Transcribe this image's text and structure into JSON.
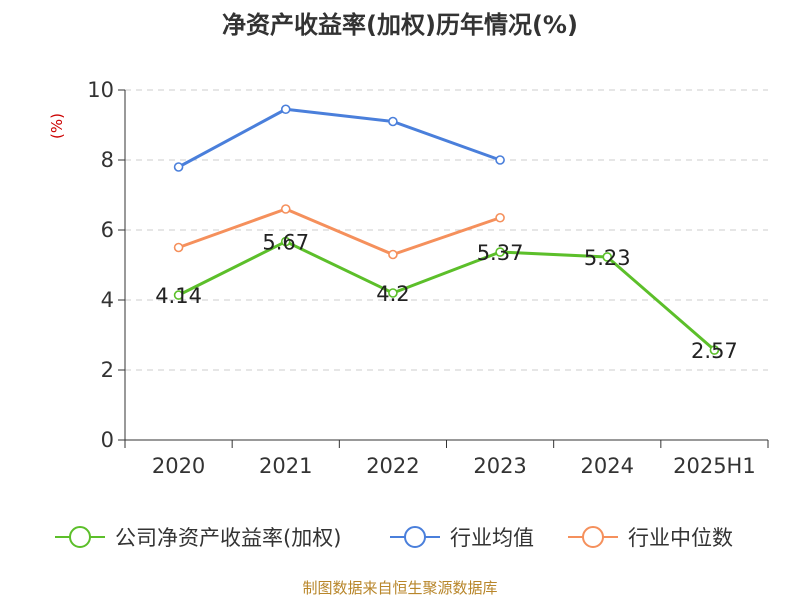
{
  "chart_data": {
    "type": "line",
    "title": "净资产收益率(加权)历年情况(%)",
    "ylabel": "(%)",
    "categories": [
      "2020",
      "2021",
      "2022",
      "2023",
      "2024",
      "2025H1"
    ],
    "ylim": [
      0,
      10
    ],
    "yticks": [
      0,
      2,
      4,
      6,
      8,
      10
    ],
    "grid": true,
    "legend_position": "bottom",
    "series": [
      {
        "name": "公司净资产收益率(加权)",
        "color": "#5cbf2a",
        "values": [
          4.14,
          5.67,
          4.2,
          5.37,
          5.23,
          2.57
        ],
        "labels": [
          "4.14",
          "5.67",
          "4.2",
          "5.37",
          "5.23",
          "2.57"
        ]
      },
      {
        "name": "行业均值",
        "color": "#4a7fdb",
        "values": [
          7.8,
          9.45,
          9.1,
          8.0,
          null,
          null
        ]
      },
      {
        "name": "行业中位数",
        "color": "#f5905c",
        "values": [
          5.5,
          6.6,
          5.3,
          6.35,
          null,
          null
        ]
      }
    ]
  },
  "source": "制图数据来自恒生聚源数据库"
}
